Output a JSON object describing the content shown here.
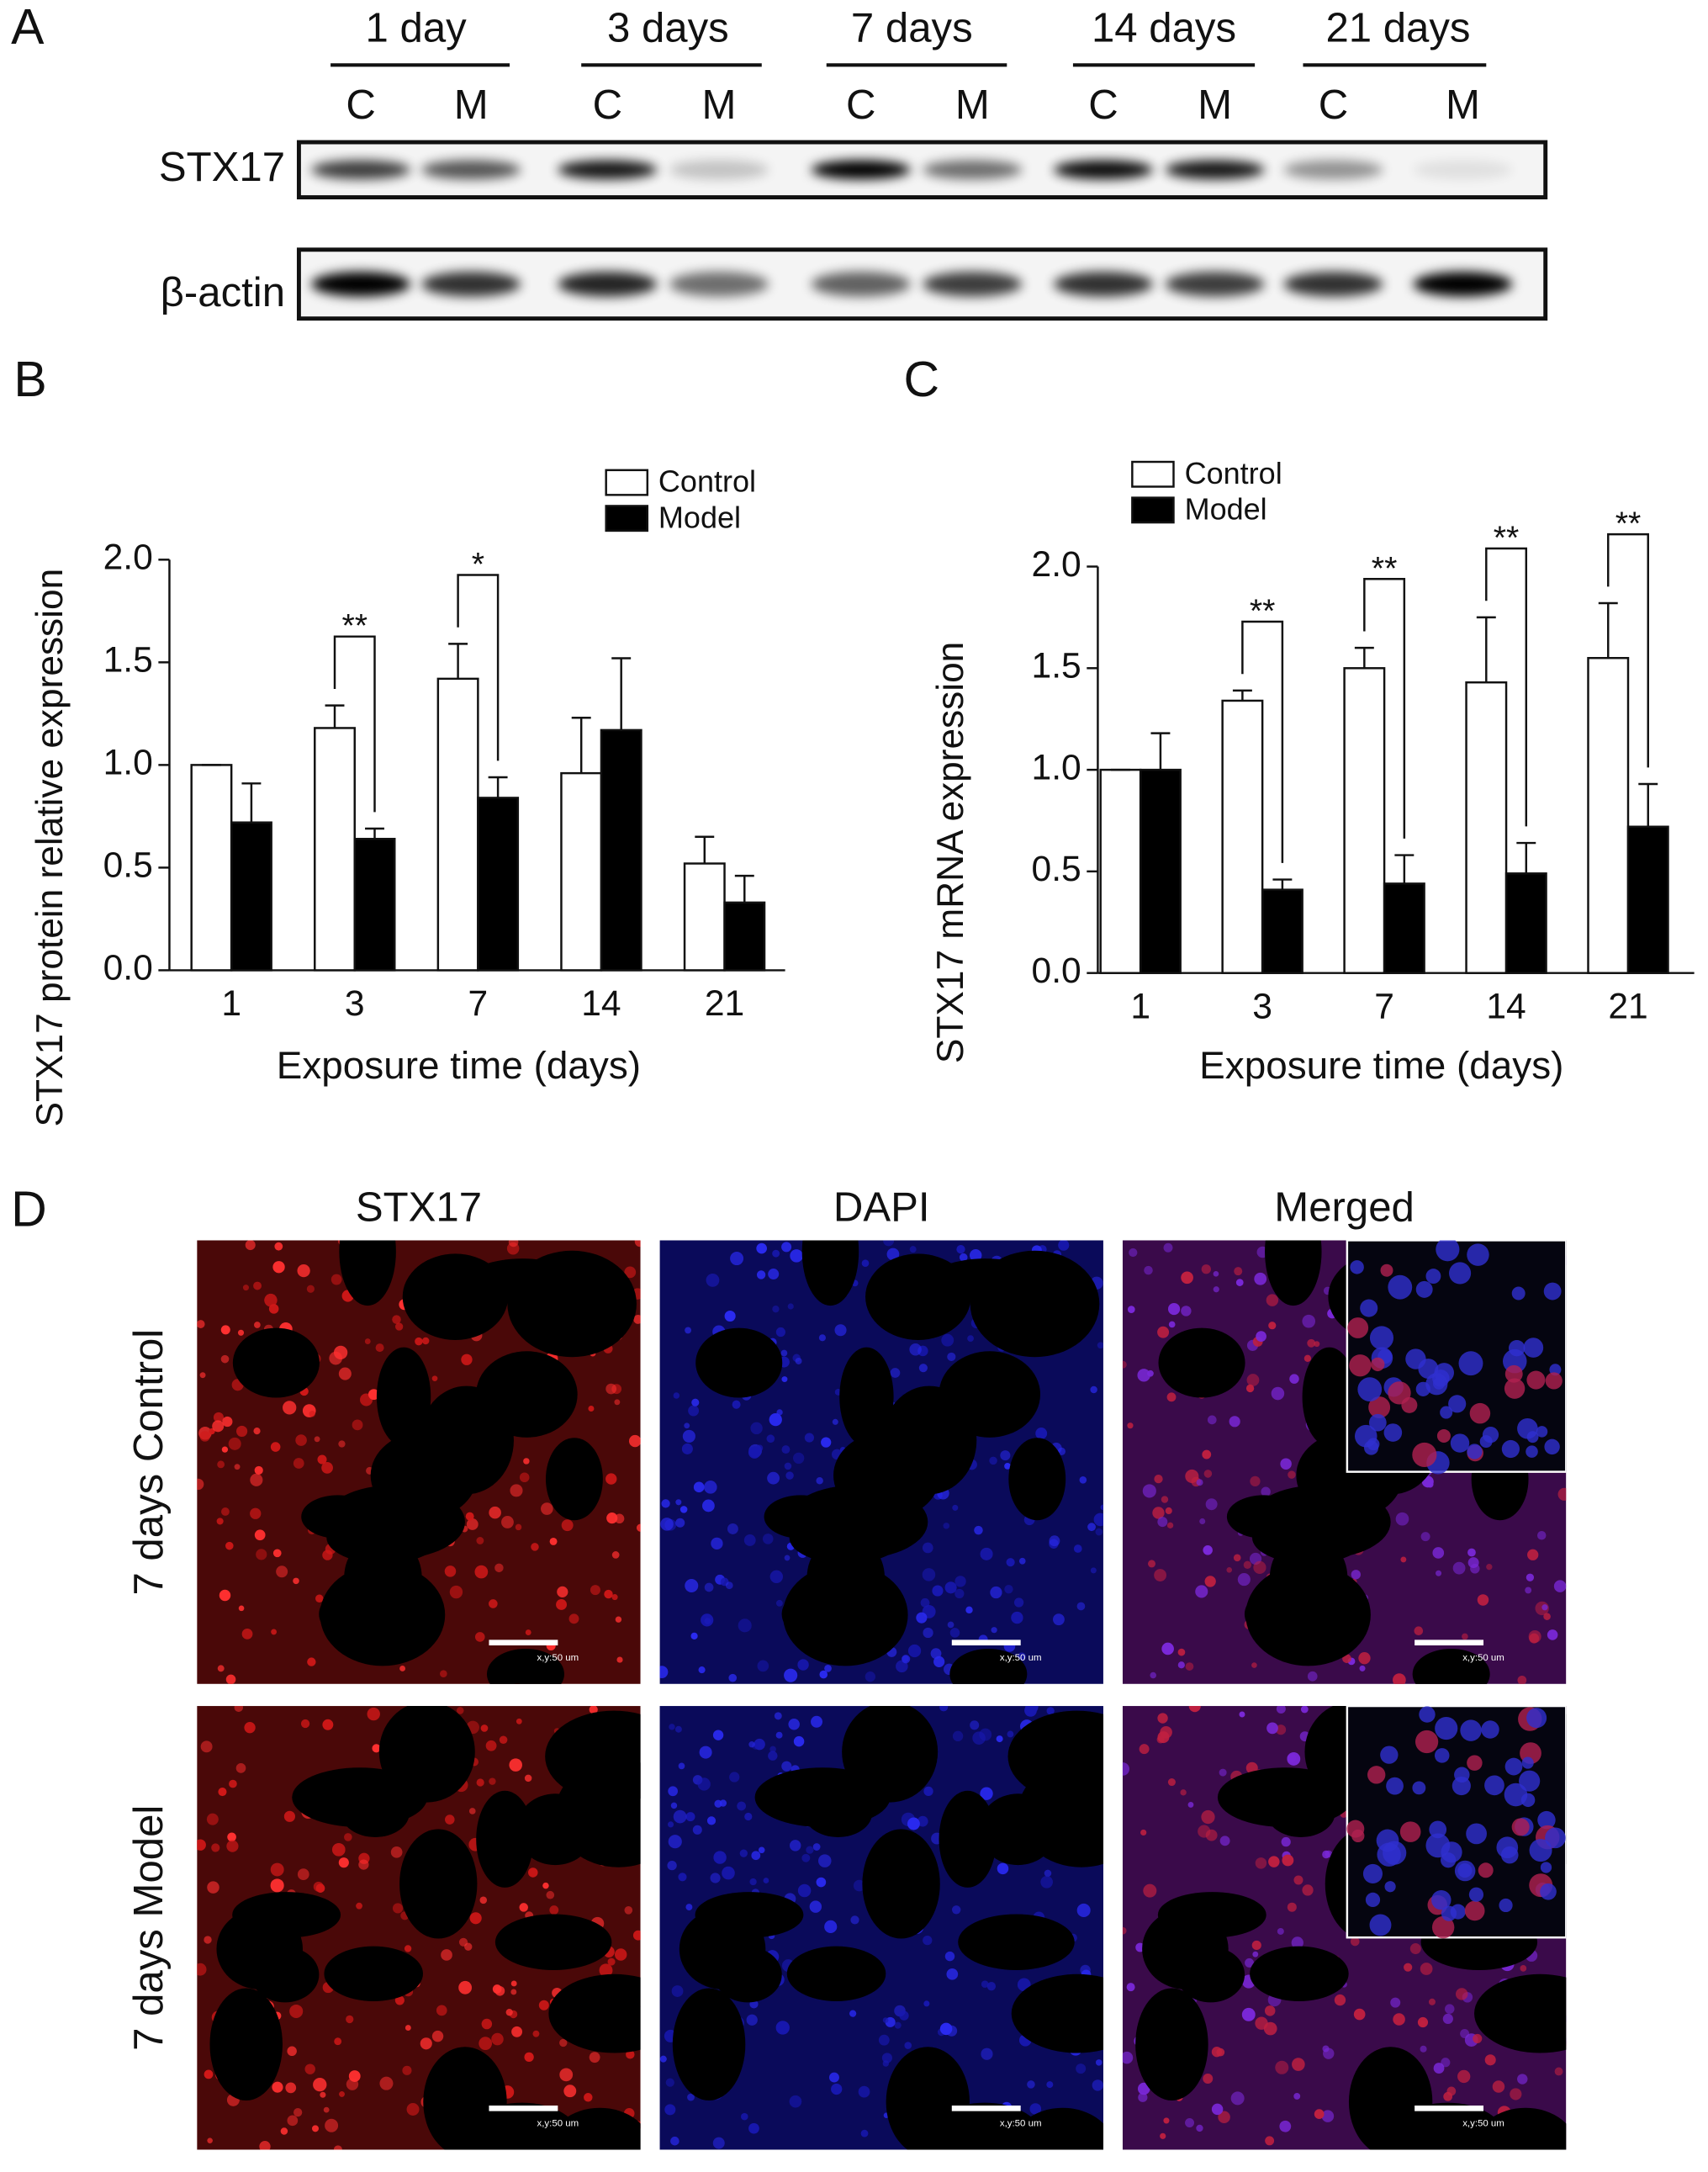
{
  "panel_labels": [
    "A",
    "B",
    "C",
    "D"
  ],
  "western_blot": {
    "time_points": [
      "1 day",
      "3 days",
      "7 days",
      "14 days",
      "21 days"
    ],
    "lanes": [
      "C",
      "M",
      "C",
      "M",
      "C",
      "M",
      "C",
      "M",
      "C",
      "M"
    ],
    "proteins": [
      "STX17",
      "β-actin"
    ]
  },
  "chart_data": [
    {
      "type": "bar",
      "y_label": "STX17 protein relative expression",
      "x_label": "Exposure time (days)",
      "categories": [
        "1",
        "3",
        "7",
        "14",
        "21"
      ],
      "series": [
        {
          "name": "Control",
          "color": "#ffffff",
          "values": [
            1.0,
            1.18,
            1.42,
            0.96,
            0.52
          ],
          "errors": [
            0,
            0.11,
            0.17,
            0.27,
            0.13
          ]
        },
        {
          "name": "Model",
          "color": "#000000",
          "values": [
            0.72,
            0.64,
            0.84,
            1.17,
            0.33
          ],
          "errors": [
            0.19,
            0.05,
            0.1,
            0.35,
            0.13
          ]
        }
      ],
      "significance": [
        null,
        "**",
        "*",
        null,
        null
      ],
      "ylim": [
        0,
        2
      ],
      "yticks": [
        {
          "value": 0,
          "label": "0.0"
        },
        0.5,
        {
          "value": 1,
          "label": "1.0"
        },
        1.5,
        {
          "value": 2,
          "label": "2.0"
        }
      ],
      "legend": "top"
    },
    {
      "type": "bar",
      "y_label": "STX17 mRNA expression",
      "x_label": "Exposure time (days)",
      "categories": [
        "1",
        "3",
        "7",
        "14",
        "21"
      ],
      "series": [
        {
          "name": "Control",
          "color": "#ffffff",
          "values": [
            1.0,
            1.34,
            1.5,
            1.43,
            1.55
          ],
          "errors": [
            0,
            0.05,
            0.1,
            0.32,
            0.27
          ]
        },
        {
          "name": "Model",
          "color": "#000000",
          "values": [
            1.0,
            0.41,
            0.44,
            0.49,
            0.72
          ],
          "errors": [
            0.18,
            0.05,
            0.14,
            0.15,
            0.21
          ]
        }
      ],
      "significance": [
        null,
        "**",
        "**",
        "**",
        "**"
      ],
      "ylim": [
        0,
        2
      ],
      "yticks": [
        {
          "value": 0,
          "label": "0.0"
        },
        0.5,
        {
          "value": 1,
          "label": "1.0"
        },
        1.5,
        {
          "value": 2,
          "label": "2.0"
        }
      ],
      "legend": "top"
    }
  ],
  "microscopy": {
    "stains": [
      "STX17",
      "DAPI",
      "Merged"
    ],
    "groups": [
      "7 days Control",
      "7 days Model"
    ],
    "scale_bar": "x,y:50 um"
  }
}
